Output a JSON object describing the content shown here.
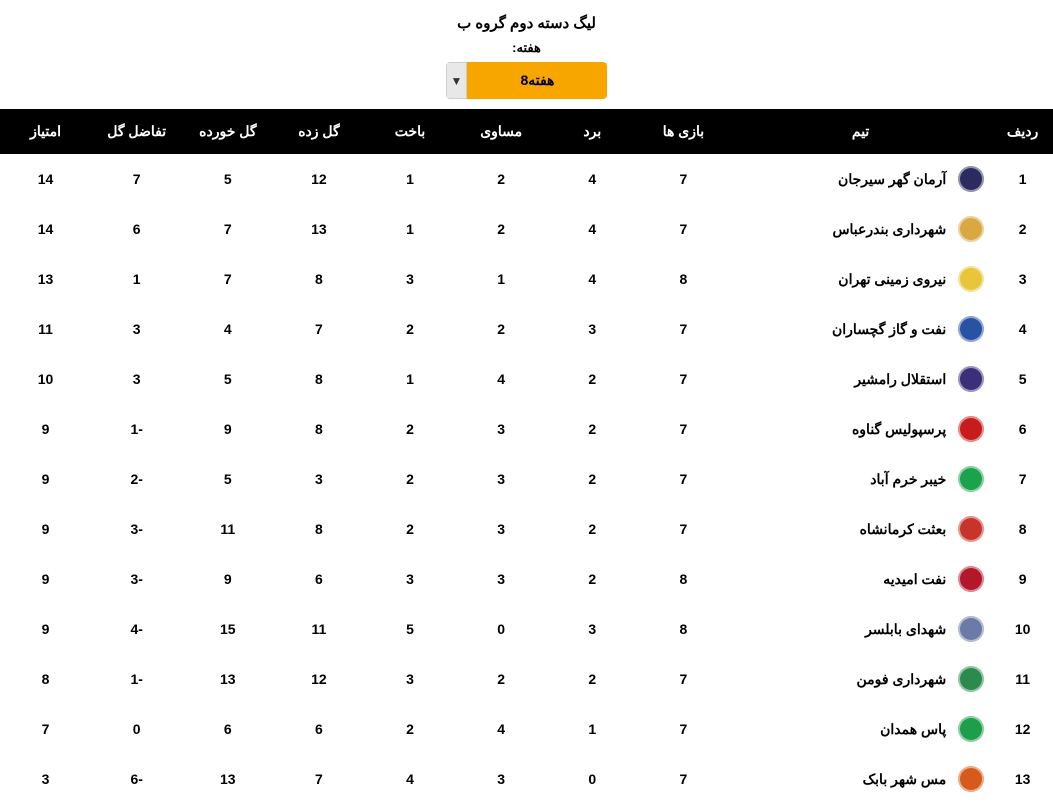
{
  "title": "لیگ دسته دوم گروه ب",
  "week_label": "هفته:",
  "week_value": "هفته8",
  "columns": {
    "rank": "ردیف",
    "team": "تیم",
    "played": "بازی ها",
    "win": "برد",
    "draw": "مساوی",
    "loss": "باخت",
    "gf": "گل زده",
    "ga": "گل خورده",
    "gd": "تفاضل گل",
    "pts": "امتیاز"
  },
  "logo_colors": [
    "#2b2b60",
    "#d9a842",
    "#e8c63a",
    "#2952a3",
    "#3b2f7a",
    "#c81c1c",
    "#1aa34a",
    "#c6342c",
    "#b3182a",
    "#6b7aa8",
    "#2a8b4d",
    "#1d9e4b",
    "#d65a1c"
  ],
  "rows": [
    {
      "rank": "1",
      "team": "آرمان گهر سیرجان",
      "p": "7",
      "w": "4",
      "d": "2",
      "l": "1",
      "gf": "12",
      "ga": "5",
      "gd": "7",
      "pts": "14"
    },
    {
      "rank": "2",
      "team": "شهرداری بندرعباس",
      "p": "7",
      "w": "4",
      "d": "2",
      "l": "1",
      "gf": "13",
      "ga": "7",
      "gd": "6",
      "pts": "14"
    },
    {
      "rank": "3",
      "team": "نیروی زمینی تهران",
      "p": "8",
      "w": "4",
      "d": "1",
      "l": "3",
      "gf": "8",
      "ga": "7",
      "gd": "1",
      "pts": "13"
    },
    {
      "rank": "4",
      "team": "نفت و گاز گچساران",
      "p": "7",
      "w": "3",
      "d": "2",
      "l": "2",
      "gf": "7",
      "ga": "4",
      "gd": "3",
      "pts": "11"
    },
    {
      "rank": "5",
      "team": "استقلال رامشیر",
      "p": "7",
      "w": "2",
      "d": "4",
      "l": "1",
      "gf": "8",
      "ga": "5",
      "gd": "3",
      "pts": "10"
    },
    {
      "rank": "6",
      "team": "پرسپولیس گناوه",
      "p": "7",
      "w": "2",
      "d": "3",
      "l": "2",
      "gf": "8",
      "ga": "9",
      "gd": "-1",
      "pts": "9"
    },
    {
      "rank": "7",
      "team": "خیبر خرم آباد",
      "p": "7",
      "w": "2",
      "d": "3",
      "l": "2",
      "gf": "3",
      "ga": "5",
      "gd": "-2",
      "pts": "9"
    },
    {
      "rank": "8",
      "team": "بعثت کرمانشاه",
      "p": "7",
      "w": "2",
      "d": "3",
      "l": "2",
      "gf": "8",
      "ga": "11",
      "gd": "-3",
      "pts": "9"
    },
    {
      "rank": "9",
      "team": "نفت امیدیه",
      "p": "8",
      "w": "2",
      "d": "3",
      "l": "3",
      "gf": "6",
      "ga": "9",
      "gd": "-3",
      "pts": "9"
    },
    {
      "rank": "10",
      "team": "شهدای بابلسر",
      "p": "8",
      "w": "3",
      "d": "0",
      "l": "5",
      "gf": "11",
      "ga": "15",
      "gd": "-4",
      "pts": "9"
    },
    {
      "rank": "11",
      "team": "شهرداری فومن",
      "p": "7",
      "w": "2",
      "d": "2",
      "l": "3",
      "gf": "12",
      "ga": "13",
      "gd": "-1",
      "pts": "8"
    },
    {
      "rank": "12",
      "team": "پاس همدان",
      "p": "7",
      "w": "1",
      "d": "4",
      "l": "2",
      "gf": "6",
      "ga": "6",
      "gd": "0",
      "pts": "7"
    },
    {
      "rank": "13",
      "team": "مس شهر بابک",
      "p": "7",
      "w": "0",
      "d": "3",
      "l": "4",
      "gf": "7",
      "ga": "13",
      "gd": "-6",
      "pts": "3"
    }
  ]
}
